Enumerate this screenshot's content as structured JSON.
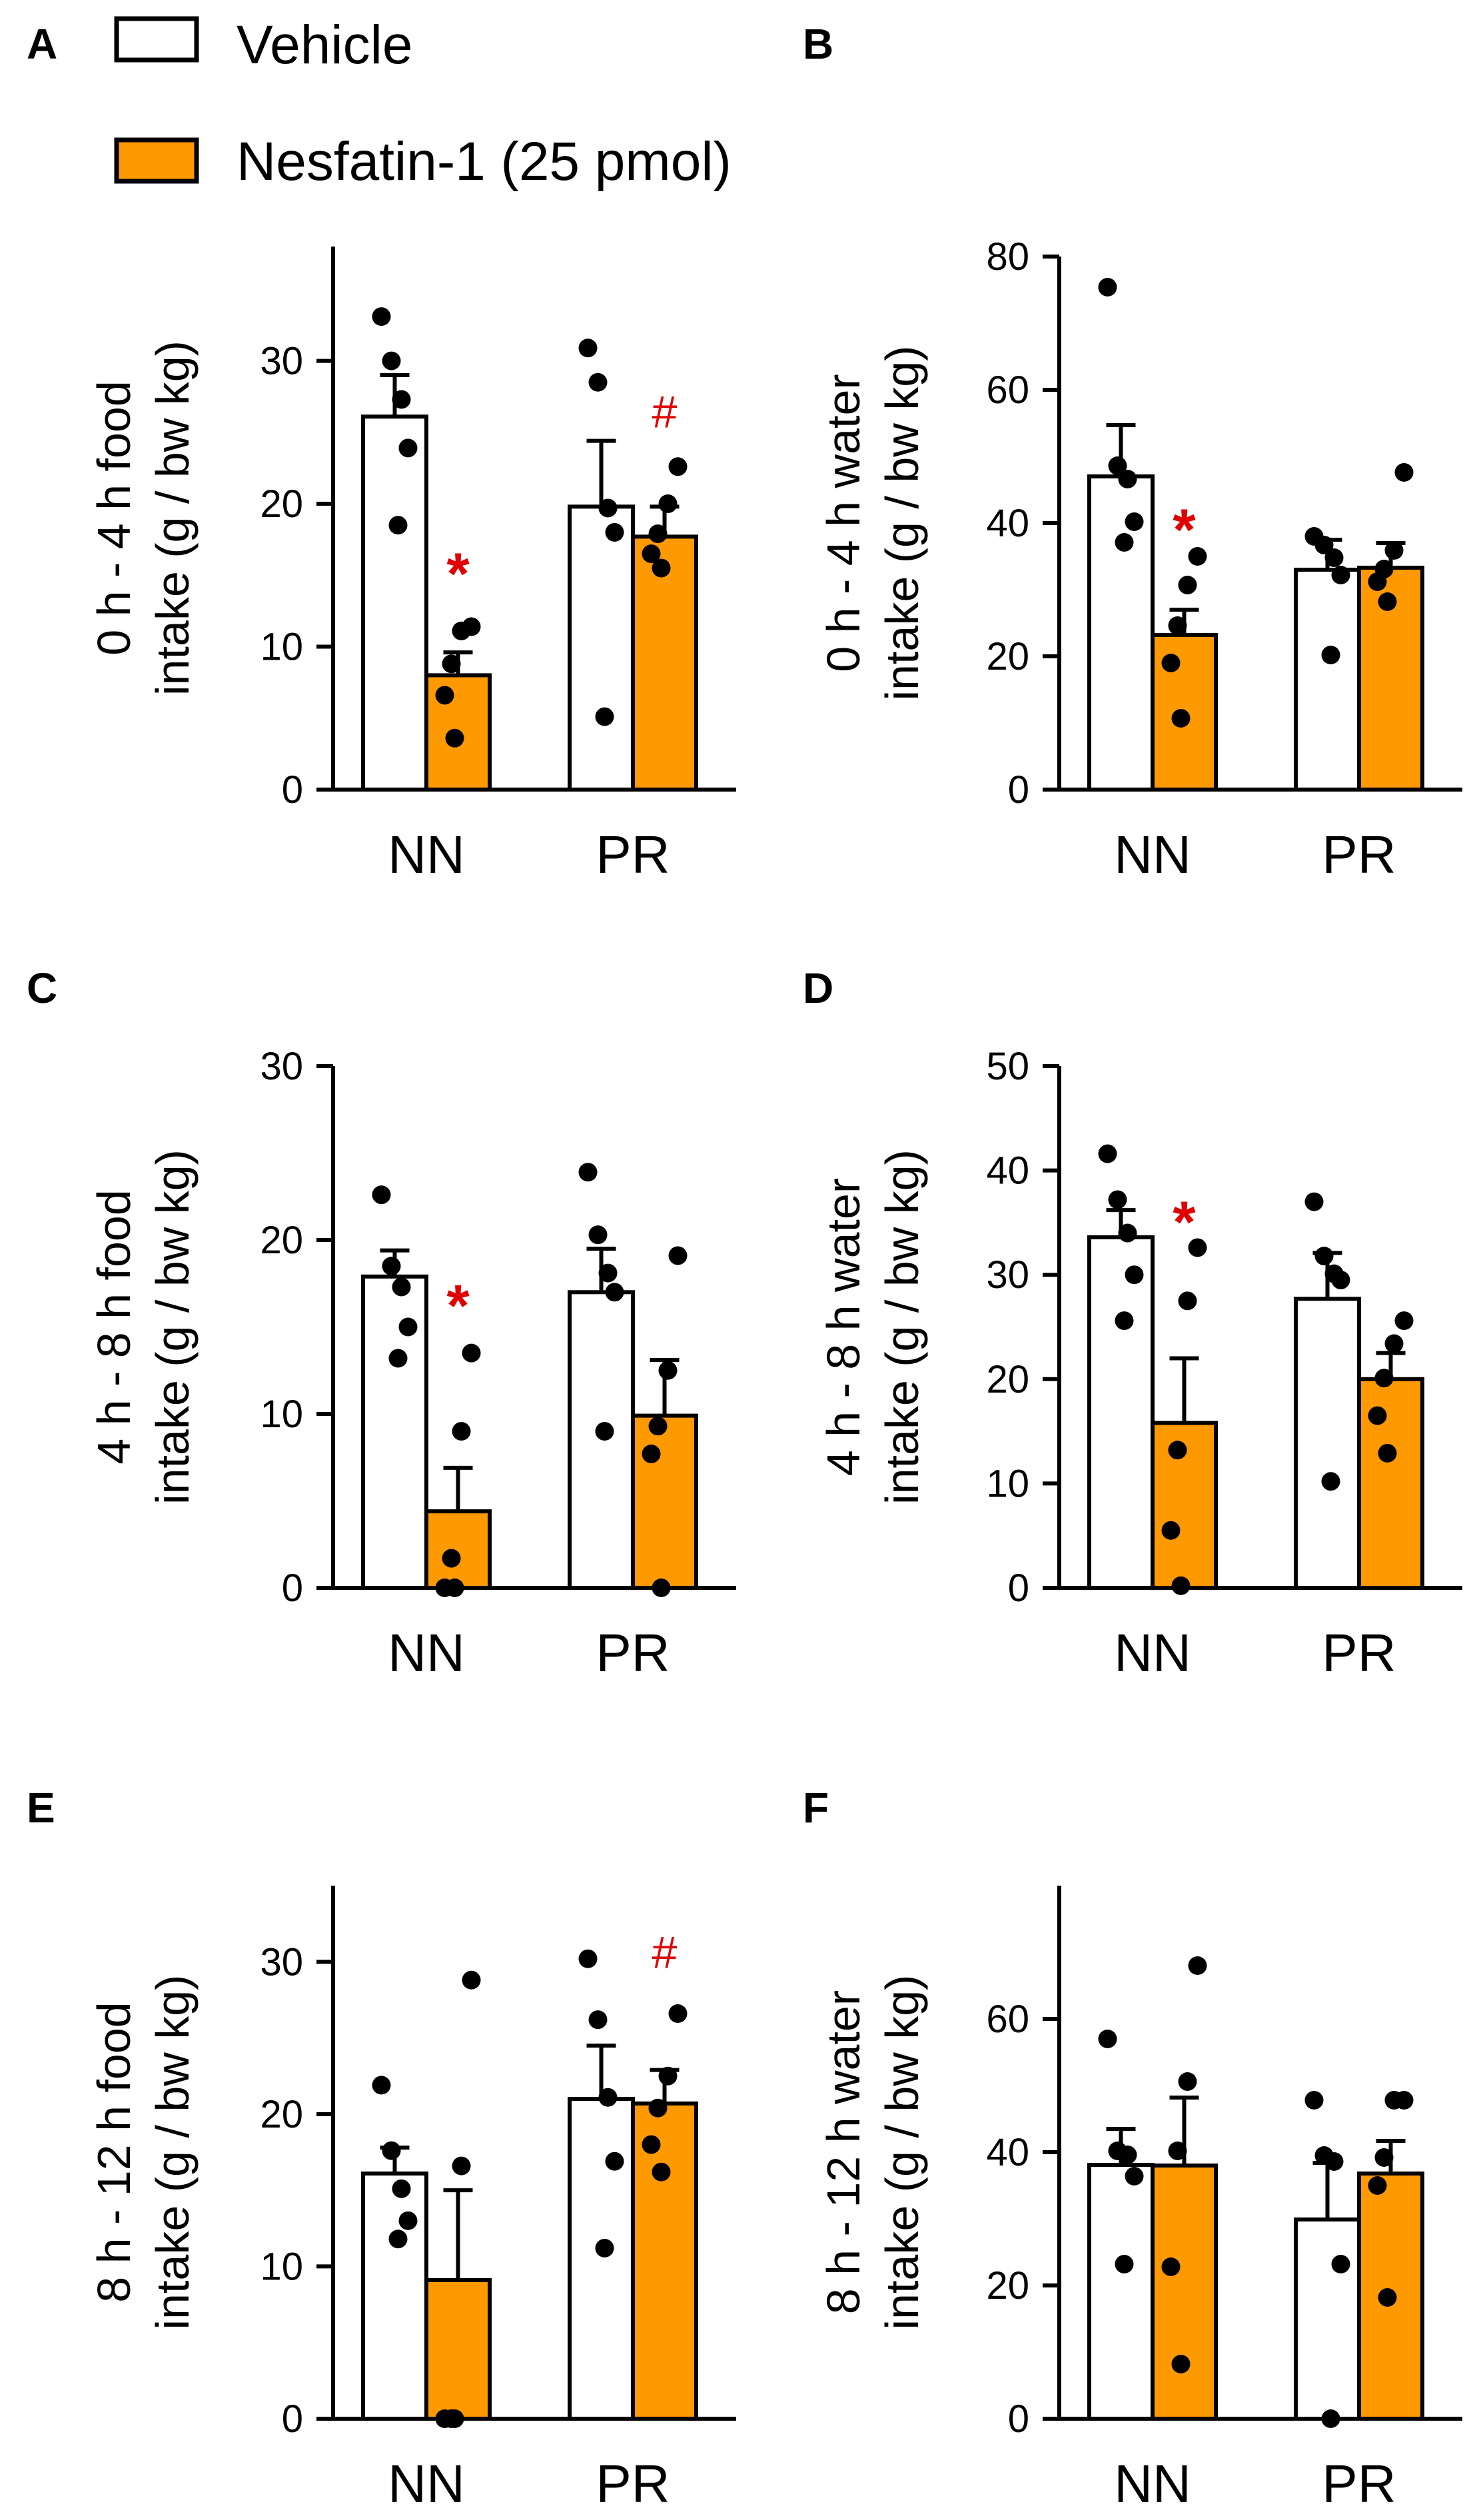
{
  "legend": {
    "items": [
      {
        "label": "Vehicle",
        "color": "#ffffff"
      },
      {
        "label": "Nesfatin-1 (25 pmol)",
        "color": "#ff9900"
      }
    ]
  },
  "colors": {
    "vehicle": "#ffffff",
    "nesfatin": "#ff9900",
    "significance": "#e00000",
    "dots": "#000000"
  },
  "chart_data": [
    {
      "panel": "A",
      "type": "bar",
      "ylabel_lines": [
        "0 h - 4 h food",
        "intake (g / bw kg)"
      ],
      "categories": [
        "NN",
        "PR"
      ],
      "ylim": [
        0,
        38
      ],
      "yticks": [
        0,
        10,
        20,
        30
      ],
      "series": [
        {
          "name": "Vehicle",
          "values": [
            26.1,
            19.8
          ],
          "sem": [
            2.9,
            4.6
          ],
          "points": [
            [
              33.1,
              30.0,
              27.3,
              23.9,
              18.5
            ],
            [
              30.9,
              28.5,
              19.7,
              18.0,
              5.1
            ]
          ]
        },
        {
          "name": "Nesfatin-1 (25 pmol)",
          "values": [
            8.0,
            17.7
          ],
          "sem": [
            1.6,
            2.1
          ],
          "points": [
            [
              11.4,
              11.1,
              8.8,
              6.6,
              3.6
            ],
            [
              22.6,
              20.0,
              17.9,
              16.5,
              15.5
            ]
          ]
        }
      ],
      "annotations": [
        {
          "text": "*",
          "category": "NN",
          "series": 1,
          "value": 15.8
        },
        {
          "text": "#",
          "category": "PR",
          "series": 1,
          "value": 26.5
        }
      ]
    },
    {
      "panel": "B",
      "type": "bar",
      "ylabel_lines": [
        "0 h - 4 h water",
        "intake (g / bw kg)"
      ],
      "categories": [
        "NN",
        "PR"
      ],
      "ylim": [
        0,
        80
      ],
      "yticks": [
        0,
        20,
        40,
        60,
        80
      ],
      "series": [
        {
          "name": "Vehicle",
          "values": [
            47.0,
            33.0
          ],
          "sem": [
            7.7,
            4.5
          ],
          "points": [
            [
              75.4,
              48.6,
              46.6,
              40.2,
              37.1
            ],
            [
              38.0,
              36.7,
              34.8,
              32.2,
              20.2
            ]
          ]
        },
        {
          "name": "Nesfatin-1 (25 pmol)",
          "values": [
            23.2,
            33.3
          ],
          "sem": [
            3.8,
            3.7
          ],
          "points": [
            [
              35.0,
              30.7,
              24.6,
              19.0,
              10.7
            ],
            [
              47.6,
              35.9,
              33.1,
              31.2,
              28.2
            ]
          ]
        }
      ],
      "annotations": [
        {
          "text": "*",
          "category": "NN",
          "series": 1,
          "value": 40.5
        }
      ]
    },
    {
      "panel": "C",
      "type": "bar",
      "ylabel_lines": [
        "4 h - 8 h food",
        "intake (g / bw kg)"
      ],
      "categories": [
        "NN",
        "PR"
      ],
      "ylim": [
        0,
        30
      ],
      "yticks": [
        0,
        10,
        20,
        30
      ],
      "series": [
        {
          "name": "Vehicle",
          "values": [
            17.9,
            17.0
          ],
          "sem": [
            1.5,
            2.5
          ],
          "points": [
            [
              22.6,
              18.5,
              17.3,
              15.0,
              13.2
            ],
            [
              23.9,
              20.3,
              18.1,
              17.0,
              9.0
            ]
          ]
        },
        {
          "name": "Nesfatin-1 (25 pmol)",
          "values": [
            4.4,
            9.9
          ],
          "sem": [
            2.5,
            3.2
          ],
          "points": [
            [
              13.5,
              9.0,
              1.7,
              0.0,
              0.0
            ],
            [
              19.1,
              12.5,
              9.3,
              7.7,
              0.0
            ]
          ]
        }
      ],
      "annotations": [
        {
          "text": "*",
          "category": "NN",
          "series": 1,
          "value": 16.8
        }
      ]
    },
    {
      "panel": "D",
      "type": "bar",
      "ylabel_lines": [
        "4 h - 8 h water",
        "intake (g / bw kg)"
      ],
      "categories": [
        "NN",
        "PR"
      ],
      "ylim": [
        0,
        50
      ],
      "yticks": [
        0,
        10,
        20,
        30,
        40,
        50
      ],
      "series": [
        {
          "name": "Vehicle",
          "values": [
            33.6,
            27.7
          ],
          "sem": [
            2.6,
            4.4
          ],
          "points": [
            [
              41.6,
              37.2,
              34.0,
              30.0,
              25.6
            ],
            [
              37.0,
              31.8,
              30.1,
              29.5,
              10.2
            ]
          ]
        },
        {
          "name": "Nesfatin-1 (25 pmol)",
          "values": [
            15.8,
            20.0
          ],
          "sem": [
            6.2,
            2.5
          ],
          "points": [
            [
              32.6,
              27.5,
              13.2,
              5.5,
              0.2
            ],
            [
              25.6,
              23.4,
              20.1,
              16.5,
              12.9
            ]
          ]
        }
      ],
      "annotations": [
        {
          "text": "*",
          "category": "NN",
          "series": 1,
          "value": 36.0
        }
      ]
    },
    {
      "panel": "E",
      "type": "bar",
      "ylabel_lines": [
        "8 h - 12 h food",
        "intake (g / bw kg)"
      ],
      "categories": [
        "NN",
        "PR"
      ],
      "ylim": [
        0,
        35
      ],
      "yticks": [
        0,
        10,
        20,
        30
      ],
      "series": [
        {
          "name": "Vehicle",
          "values": [
            16.1,
            21.0
          ],
          "sem": [
            1.7,
            3.5
          ],
          "points": [
            [
              21.9,
              17.6,
              15.1,
              13.0,
              11.8
            ],
            [
              30.2,
              26.2,
              21.1,
              16.9,
              11.2
            ]
          ]
        },
        {
          "name": "Nesfatin-1 (25 pmol)",
          "values": [
            9.1,
            20.7
          ],
          "sem": [
            5.9,
            2.2
          ],
          "points": [
            [
              28.8,
              16.6,
              0.0,
              0.0,
              0.0
            ],
            [
              26.6,
              22.5,
              20.4,
              18.0,
              16.2
            ]
          ]
        }
      ],
      "annotations": [
        {
          "text": "#",
          "category": "PR",
          "series": 1,
          "value": 30.7
        }
      ]
    },
    {
      "panel": "F",
      "type": "bar",
      "ylabel_lines": [
        "8 h - 12 h water",
        "intake (g / bw kg)"
      ],
      "categories": [
        "NN",
        "PR"
      ],
      "ylim": [
        0,
        80
      ],
      "yticks": [
        0,
        20,
        40,
        60
      ],
      "series": [
        {
          "name": "Vehicle",
          "values": [
            38.1,
            29.9
          ],
          "sem": [
            5.4,
            8.5
          ],
          "points": [
            [
              57.0,
              40.2,
              39.6,
              36.4,
              23.2
            ],
            [
              47.8,
              39.5,
              38.6,
              23.2,
              0.0
            ]
          ]
        },
        {
          "name": "Nesfatin-1 (25 pmol)",
          "values": [
            38.0,
            36.8
          ],
          "sem": [
            10.2,
            4.9
          ],
          "points": [
            [
              68.0,
              50.6,
              40.2,
              22.8,
              8.2
            ],
            [
              47.8,
              47.8,
              39.2,
              35.0,
              18.2
            ]
          ]
        }
      ],
      "annotations": []
    }
  ]
}
